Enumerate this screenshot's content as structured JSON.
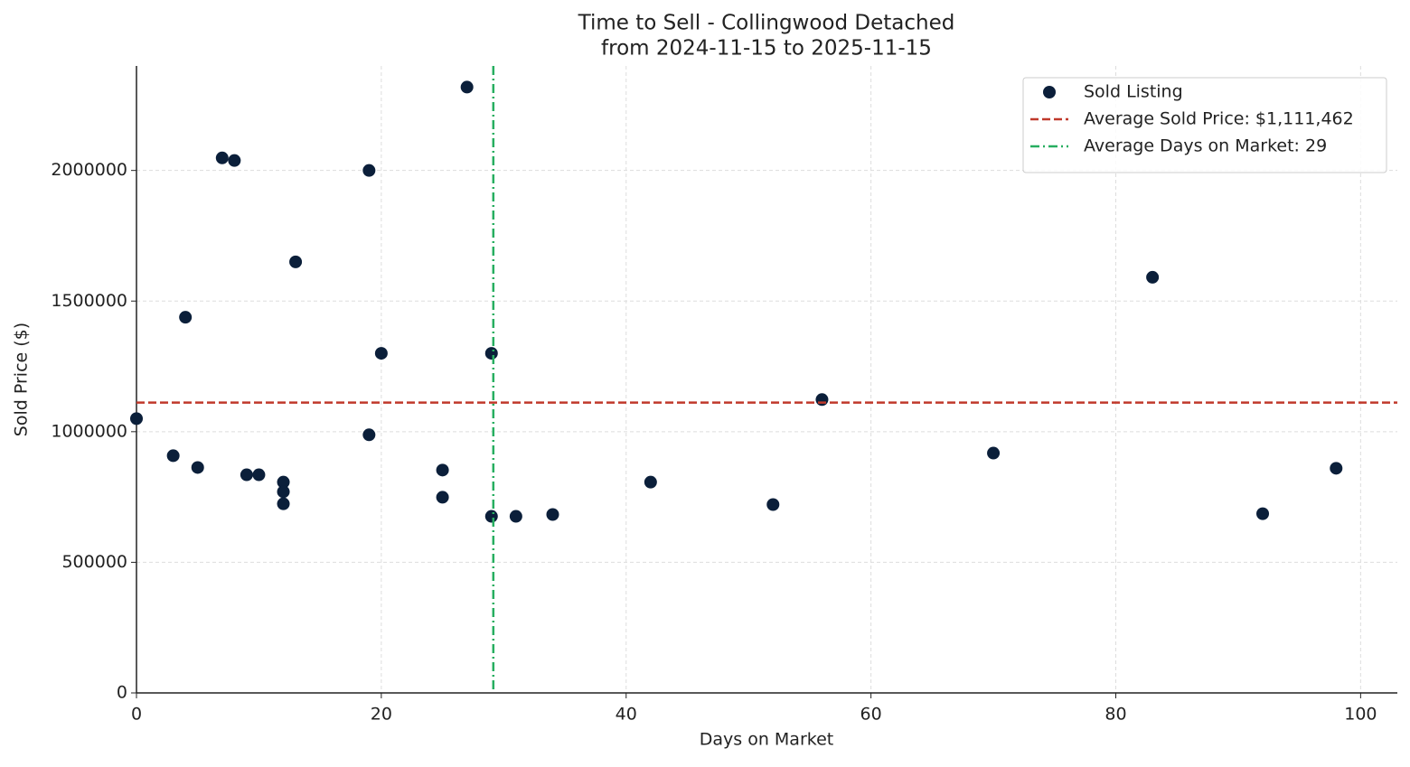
{
  "chart_data": {
    "type": "scatter",
    "title": "Time to Sell - Collingwood Detached",
    "subtitle": "from 2024-11-15 to 2025-11-15",
    "x_label": "Days on Market",
    "y_label": "Sold Price ($)",
    "series": [
      {
        "name": "Sold Listing",
        "color": "#0b1f3a",
        "x": [
          0,
          3,
          4,
          5,
          7,
          8,
          9,
          10,
          12,
          12,
          12,
          13,
          19,
          19,
          20,
          25,
          25,
          27,
          29,
          29,
          31,
          34,
          42,
          52,
          56,
          70,
          83,
          92,
          98
        ],
        "values": [
          1050000,
          908000,
          1438000,
          863000,
          2048000,
          2038000,
          835000,
          835000,
          807000,
          770000,
          724000,
          1650000,
          2000000,
          988000,
          1300000,
          853000,
          749000,
          2319000,
          1300000,
          676000,
          676000,
          683000,
          807000,
          721000,
          1123000,
          918000,
          1591000,
          686000,
          860000
        ]
      }
    ],
    "reference_lines": [
      {
        "name": "Average Sold Price: $1,111,462",
        "axis": "y",
        "value": 1111462,
        "color": "#c0392b",
        "dash": "dashed"
      },
      {
        "name": "Average Days on Market: 29",
        "axis": "x",
        "value": 29.15,
        "color": "#27ae60",
        "dash": "dashdot"
      }
    ],
    "xlim": [
      0,
      103
    ],
    "xticks": [
      0,
      20,
      40,
      60,
      80,
      100
    ],
    "ylim": [
      0,
      2400000
    ],
    "yticks": [
      0,
      500000,
      1000000,
      1500000,
      2000000
    ],
    "grid": true,
    "legend": "upper right"
  }
}
